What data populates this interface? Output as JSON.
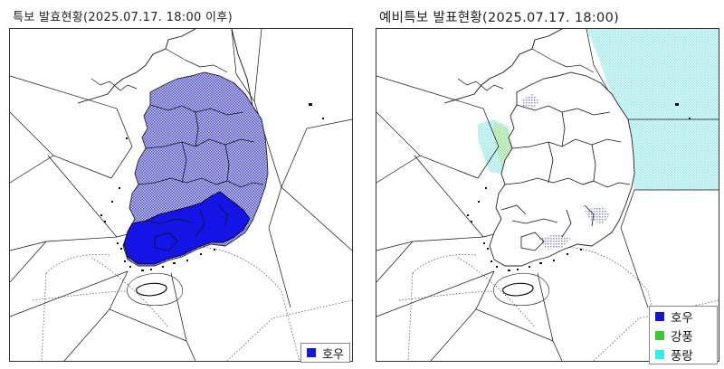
{
  "left_panel": {
    "title": "특보 발효현황(2025.07.17. 18:00 이후)",
    "legend": [
      {
        "label": "호우",
        "color": "#1414e6",
        "icon": "square-swatch"
      }
    ]
  },
  "right_panel": {
    "title": "예비특보 발표현황(2025.07.17. 18:00)",
    "legend": [
      {
        "label": "호우",
        "color": "#1414cc",
        "icon": "square-swatch"
      },
      {
        "label": "강풍",
        "color": "#33cc33",
        "icon": "square-swatch"
      },
      {
        "label": "풍랑",
        "color": "#33eeee",
        "icon": "square-swatch"
      }
    ]
  },
  "colors": {
    "heavy_rain_warning": "#1414e6",
    "heavy_rain_advisory": "#7474d8",
    "wind": "#9fe59f",
    "wave": "#bff3f3",
    "border": "#000000"
  }
}
